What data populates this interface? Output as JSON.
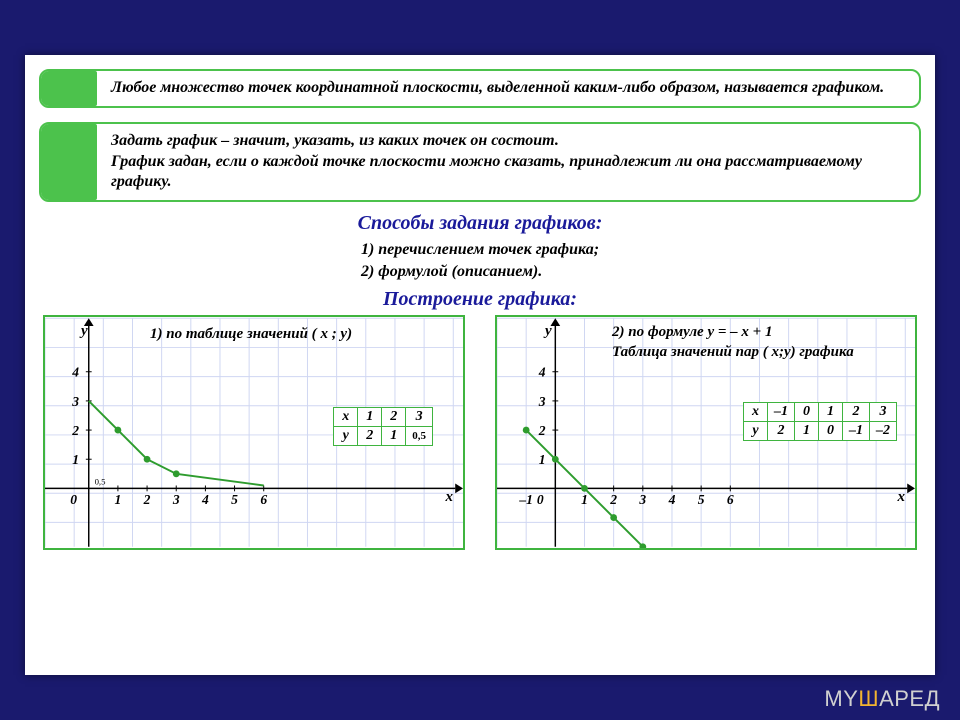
{
  "background_color": "#1a1a6e",
  "slide_color": "#ffffff",
  "accent_green": "#4cc24c",
  "heading_blue": "#1a1a9a",
  "definitions": [
    "Любое множество точек координатной плоскости, выделенной каким-либо образом, называется графиком.",
    "Задать график – значит, указать, из каких точек он состоит.\nГрафик задан, если о каждой точке плоскости можно сказать, принадлежит ли она рассматриваемому графику."
  ],
  "section1_title": "Способы задания графиков:",
  "section1_items": [
    "1) перечислением точек графика;",
    "2) формулой (описанием)."
  ],
  "section2_title": "Построение графика:",
  "panels": {
    "left": {
      "title_prefix": "1) по таблице значений ( ",
      "title_vars": "x ; y",
      "title_suffix": ")",
      "y_label": "y",
      "x_label": "x",
      "origin_label": "0",
      "small_origin": "0,5",
      "x_ticks": [
        "1",
        "2",
        "3",
        "4",
        "5",
        "6"
      ],
      "y_ticks": [
        "1",
        "2",
        "3",
        "4"
      ],
      "table": {
        "header": [
          "x",
          "1",
          "2",
          "3"
        ],
        "row": [
          "y",
          "2",
          "1",
          "0,5"
        ]
      },
      "curve_points": [
        [
          0,
          3
        ],
        [
          1,
          2
        ],
        [
          2,
          1
        ],
        [
          3,
          0.5
        ],
        [
          6,
          0.1
        ]
      ],
      "marked_points": [
        [
          1,
          2
        ],
        [
          2,
          1
        ],
        [
          3,
          0.5
        ]
      ],
      "grid_color": "#cfd6f2",
      "axis_color": "#000000",
      "curve_color": "#2e9c2e"
    },
    "right": {
      "title_line1_prefix": "2) по формуле  ",
      "title_line1_formula": "y = – x + 1",
      "title_line2": "Таблица значений пар ( x;y) графика",
      "y_label": "y",
      "x_label": "x",
      "origin_label": "0",
      "neg_label": "–1",
      "x_ticks": [
        "1",
        "2",
        "3",
        "4",
        "5",
        "6"
      ],
      "y_ticks": [
        "1",
        "2",
        "3",
        "4"
      ],
      "table": {
        "header": [
          "x",
          "–1",
          "0",
          "1",
          "2",
          "3"
        ],
        "row": [
          "y",
          "2",
          "1",
          "0",
          "–1",
          "–2"
        ]
      },
      "line_points": [
        [
          -1,
          2
        ],
        [
          3,
          -2
        ]
      ],
      "marked_points": [
        [
          -1,
          2
        ],
        [
          0,
          1
        ],
        [
          1,
          0
        ],
        [
          2,
          -1
        ],
        [
          3,
          -2
        ]
      ],
      "grid_color": "#cfd6f2",
      "axis_color": "#000000",
      "curve_color": "#2e9c2e"
    }
  },
  "watermark": {
    "left": "MY",
    "highlight": "Ш",
    "right": "АРЕД"
  }
}
